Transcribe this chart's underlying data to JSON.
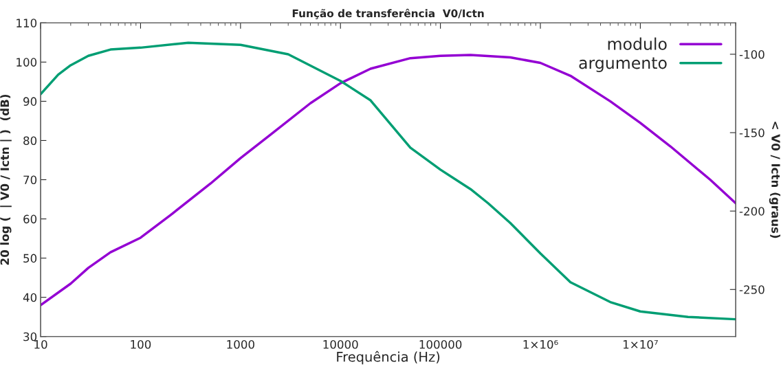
{
  "chart_data": {
    "type": "line",
    "title": "Função de transferência  V0/Ictn",
    "xlabel": "Frequência (Hz)",
    "ylabel": "20 log (  | V0 / Ictn | )  (dB)",
    "y2label": "< V0 / Ictn (graus)",
    "log": "x",
    "xlim": [
      10,
      90000000
    ],
    "xticks": [
      10,
      100,
      1000,
      10000,
      100000,
      {
        "value": 1000000,
        "label": "1×10⁶"
      },
      {
        "value": 10000000,
        "label": "1×10⁷"
      }
    ],
    "ylim": [
      30,
      110
    ],
    "yticks": [
      30,
      40,
      50,
      60,
      70,
      80,
      90,
      100,
      110
    ],
    "y2lim": [
      -280,
      -80
    ],
    "y2ticks": [
      -100,
      -150,
      -200,
      -250
    ],
    "grid": false,
    "legend": "top right",
    "line_style": "solid",
    "marker": "none",
    "series": [
      {
        "name": "modulo",
        "color": "#9400d3",
        "x": [
          10,
          20,
          30,
          50,
          100,
          200,
          500,
          1000,
          2000,
          5000,
          10000,
          20000,
          50000,
          100000,
          200000,
          500000,
          1000000,
          2000000,
          5000000,
          10000000,
          20000000,
          50000000,
          90000000
        ],
        "values": [
          38,
          43.5,
          47.5,
          51.5,
          55.2,
          61,
          69,
          75.5,
          81.5,
          89.5,
          94.6,
          98.3,
          101,
          101.6,
          101.8,
          101.2,
          99.8,
          96.5,
          90,
          84.5,
          78.5,
          70,
          64
        ]
      },
      {
        "name": "argumento",
        "color": "#009e73",
        "axis": "y2",
        "x": [
          10,
          15,
          20,
          30,
          50,
          100,
          300,
          1000,
          3000,
          10000,
          20000,
          50000,
          100000,
          200000,
          300000,
          500000,
          1000000,
          2000000,
          5000000,
          10000000,
          30000000,
          90000000
        ],
        "values": [
          -125.5,
          -113,
          -107,
          -101,
          -97,
          -95.8,
          -92.7,
          -94,
          -100,
          -117,
          -129.4,
          -159.6,
          -173.6,
          -186,
          -195,
          -207.6,
          -227,
          -245.4,
          -258,
          -264,
          -267.5,
          -269
        ]
      }
    ]
  }
}
